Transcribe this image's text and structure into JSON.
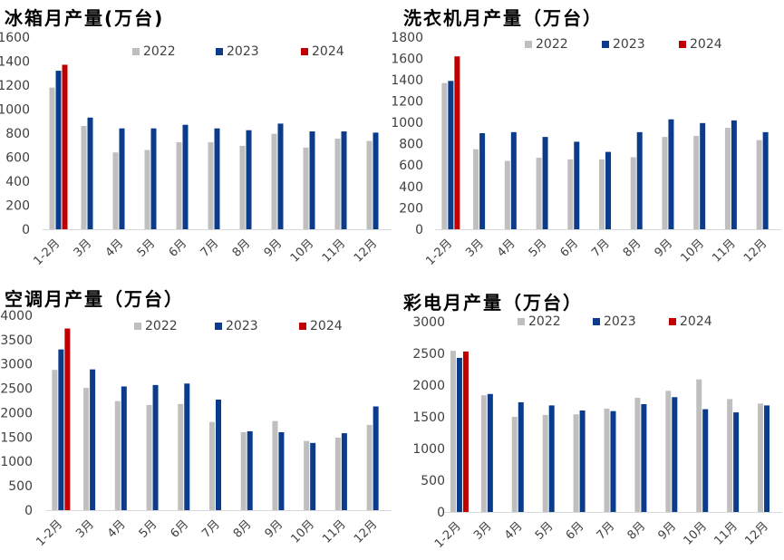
{
  "chart_data": [
    {
      "type": "bar",
      "title": "冰箱月产量(万台)",
      "categories": [
        "1-2月",
        "3月",
        "4月",
        "5月",
        "6月",
        "7月",
        "8月",
        "9月",
        "10月",
        "11月",
        "12月"
      ],
      "series": [
        {
          "name": "2022",
          "color": "#BFBFBF",
          "values": [
            1180,
            860,
            640,
            660,
            725,
            725,
            695,
            795,
            680,
            755,
            735
          ]
        },
        {
          "name": "2023",
          "color": "#0B3C8C",
          "values": [
            1320,
            930,
            840,
            840,
            870,
            840,
            825,
            880,
            815,
            815,
            805
          ]
        },
        {
          "name": "2024",
          "color": "#C00000",
          "values": [
            1370,
            null,
            null,
            null,
            null,
            null,
            null,
            null,
            null,
            null,
            null
          ]
        }
      ],
      "ylim": [
        0,
        1600
      ],
      "yticks": [
        0,
        200,
        400,
        600,
        800,
        1000,
        1200,
        1400,
        1600
      ],
      "grid": false,
      "legend": "top"
    },
    {
      "type": "bar",
      "title": "洗衣机月产量（万台）",
      "categories": [
        "1-2月",
        "3月",
        "4月",
        "5月",
        "6月",
        "7月",
        "8月",
        "9月",
        "10月",
        "11月",
        "12月"
      ],
      "series": [
        {
          "name": "2022",
          "color": "#BFBFBF",
          "values": [
            1370,
            750,
            640,
            670,
            655,
            655,
            675,
            865,
            875,
            950,
            835
          ]
        },
        {
          "name": "2023",
          "color": "#0B3C8C",
          "values": [
            1390,
            900,
            910,
            865,
            820,
            725,
            910,
            1030,
            995,
            1020,
            910
          ]
        },
        {
          "name": "2024",
          "color": "#C00000",
          "values": [
            1620,
            null,
            null,
            null,
            null,
            null,
            null,
            null,
            null,
            null,
            null
          ]
        }
      ],
      "ylim": [
        0,
        1800
      ],
      "yticks": [
        0,
        200,
        400,
        600,
        800,
        1000,
        1200,
        1400,
        1600,
        1800
      ],
      "grid": false,
      "legend": "top"
    },
    {
      "type": "bar",
      "title": "空调月产量（万台）",
      "categories": [
        "1-2月",
        "3月",
        "4月",
        "5月",
        "6月",
        "7月",
        "8月",
        "9月",
        "10月",
        "11月",
        "12月"
      ],
      "series": [
        {
          "name": "2022",
          "color": "#BFBFBF",
          "values": [
            2880,
            2510,
            2240,
            2160,
            2180,
            1810,
            1600,
            1830,
            1420,
            1490,
            1750
          ]
        },
        {
          "name": "2023",
          "color": "#0B3C8C",
          "values": [
            3300,
            2890,
            2540,
            2570,
            2600,
            2270,
            1620,
            1600,
            1380,
            1580,
            2130
          ]
        },
        {
          "name": "2024",
          "color": "#C00000",
          "values": [
            3730,
            null,
            null,
            null,
            null,
            null,
            null,
            null,
            null,
            null,
            null
          ]
        }
      ],
      "ylim": [
        0,
        4000
      ],
      "yticks": [
        0,
        500,
        1000,
        1500,
        2000,
        2500,
        3000,
        3500,
        4000
      ],
      "grid": false,
      "legend": "top"
    },
    {
      "type": "bar",
      "title": "彩电月产量（万台）",
      "categories": [
        "1-2月",
        "3月",
        "4月",
        "5月",
        "6月",
        "7月",
        "8月",
        "9月",
        "10月",
        "11月",
        "12月"
      ],
      "series": [
        {
          "name": "2022",
          "color": "#BFBFBF",
          "values": [
            2540,
            1840,
            1500,
            1530,
            1540,
            1630,
            1800,
            1910,
            2090,
            1780,
            1710
          ]
        },
        {
          "name": "2023",
          "color": "#0B3C8C",
          "values": [
            2430,
            1860,
            1730,
            1680,
            1600,
            1590,
            1700,
            1810,
            1620,
            1570,
            1680
          ]
        },
        {
          "name": "2024",
          "color": "#C00000",
          "values": [
            2530,
            null,
            null,
            null,
            null,
            null,
            null,
            null,
            null,
            null,
            null
          ]
        }
      ],
      "ylim": [
        0,
        3000
      ],
      "yticks": [
        0,
        500,
        1000,
        1500,
        2000,
        2500,
        3000
      ],
      "grid": false,
      "legend": "top"
    }
  ]
}
